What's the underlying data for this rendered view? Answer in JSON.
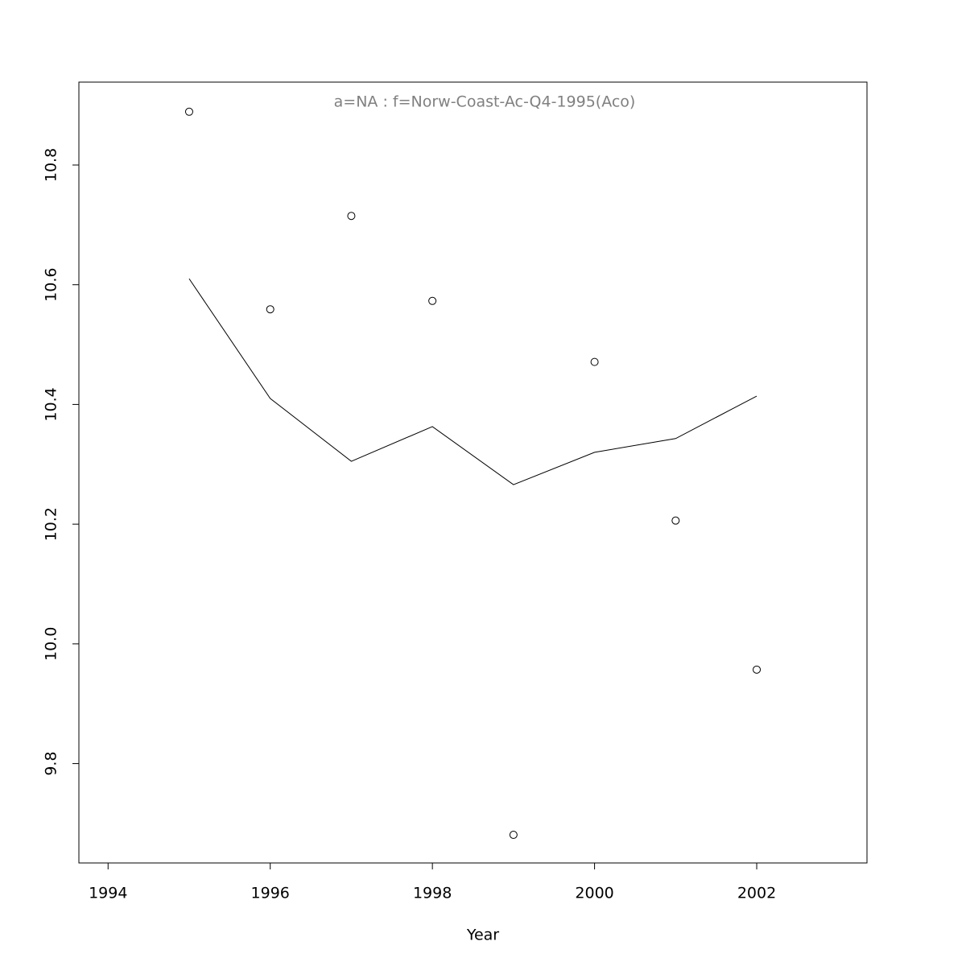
{
  "chart_data": {
    "type": "scatter",
    "title": "a=NA  :  f=Norw-Coast-Ac-Q4-1995(Aco)",
    "title_color": "#808080",
    "xlabel": "Year",
    "x": [
      1995,
      1996,
      1997,
      1998,
      1999,
      2000,
      2001,
      2002
    ],
    "series": [
      {
        "color": "#000000",
        "style": "points",
        "values": [
          10.889,
          10.559,
          10.715,
          10.573,
          9.681,
          10.471,
          10.206,
          9.957
        ]
      },
      {
        "color": "#000000",
        "style": "line",
        "values": [
          10.61,
          10.41,
          10.305,
          10.363,
          10.266,
          10.32,
          10.343,
          10.414
        ]
      }
    ],
    "xlim": [
      1993.64,
      2003.36
    ],
    "ylim": [
      9.634,
      10.9385
    ],
    "xticks": [
      1994,
      1996,
      1998,
      2000,
      2002
    ],
    "yticks": [
      9.8,
      {
        "value": 10.0,
        "label": "10.0"
      },
      10.2,
      10.4,
      10.6,
      10.8
    ],
    "grid": false
  }
}
